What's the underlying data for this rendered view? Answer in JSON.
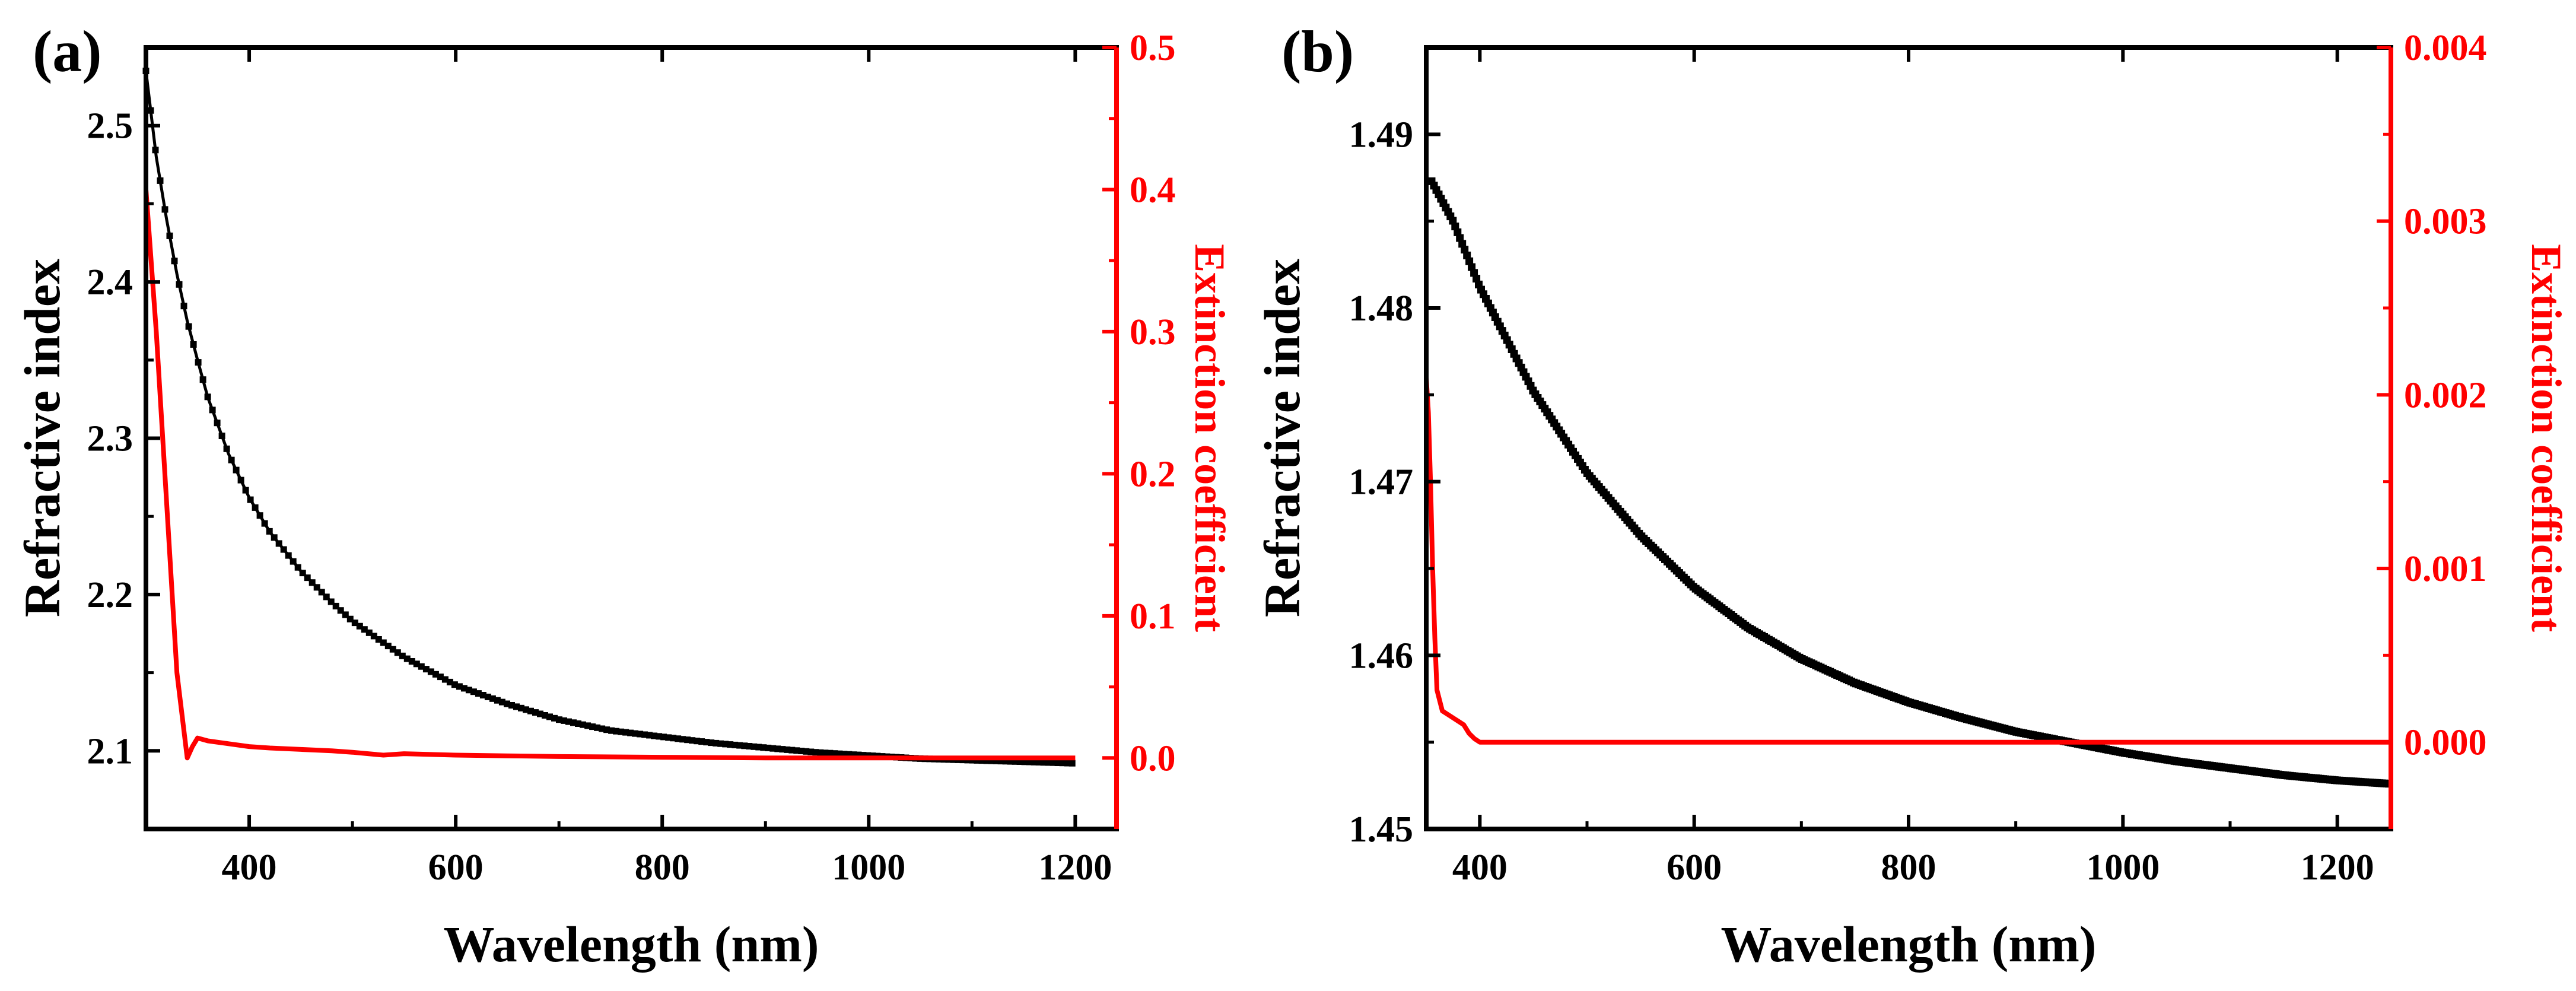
{
  "chart_data": [
    {
      "type": "line",
      "panel_label": "(a)",
      "xlabel": "Wavelength (nm)",
      "ylabel": "Refractive index",
      "y2label": "Extinction coefficient",
      "xlim": [
        300,
        1240
      ],
      "ylim": [
        2.05,
        2.55
      ],
      "y2lim": [
        -0.05,
        0.5
      ],
      "xticks": [
        400,
        600,
        800,
        1000,
        1200
      ],
      "yticks": [
        2.1,
        2.2,
        2.3,
        2.4,
        2.5
      ],
      "y2ticks": [
        0.0,
        0.1,
        0.2,
        0.3,
        0.4,
        0.5
      ],
      "xticks_label": [
        "400",
        "600",
        "800",
        "1000",
        "1200"
      ],
      "yticks_label": [
        "2.1",
        "2.2",
        "2.3",
        "2.4",
        "2.5"
      ],
      "y2ticks_label": [
        "0.0",
        "0.1",
        "0.2",
        "0.3",
        "0.4",
        "0.5"
      ],
      "series": [
        {
          "name": "Refractive index",
          "axis": "left",
          "color": "#000000",
          "marker": "square",
          "x": [
            300,
            310,
            320,
            330,
            340,
            350,
            360,
            380,
            400,
            420,
            450,
            480,
            500,
            550,
            600,
            650,
            700,
            750,
            800,
            850,
            900,
            950,
            1000,
            1050,
            1100,
            1150,
            1200
          ],
          "y": [
            2.535,
            2.48,
            2.44,
            2.405,
            2.375,
            2.35,
            2.326,
            2.29,
            2.262,
            2.24,
            2.215,
            2.195,
            2.183,
            2.16,
            2.142,
            2.13,
            2.12,
            2.113,
            2.109,
            2.105,
            2.102,
            2.099,
            2.097,
            2.095,
            2.094,
            2.093,
            2.092
          ]
        },
        {
          "name": "Extinction coefficient",
          "axis": "right",
          "color": "#ff0000",
          "marker": "none",
          "x": [
            300,
            310,
            320,
            330,
            340,
            345,
            350,
            360,
            380,
            400,
            420,
            450,
            480,
            500,
            530,
            550,
            600,
            650,
            700,
            800,
            900,
            1000,
            1100,
            1150,
            1200
          ],
          "y": [
            0.4,
            0.3,
            0.18,
            0.06,
            0.0,
            0.008,
            0.014,
            0.012,
            0.01,
            0.008,
            0.007,
            0.006,
            0.005,
            0.004,
            0.002,
            0.003,
            0.002,
            0.0015,
            0.001,
            0.0005,
            0.0,
            0.0,
            0.0,
            0.0,
            0.0
          ]
        }
      ]
    },
    {
      "type": "line",
      "panel_label": "(b)",
      "xlabel": "Wavelength (nm)",
      "ylabel": "Refractive index",
      "y2label": "Extinction coefficient",
      "xlim": [
        350,
        1250
      ],
      "ylim": [
        1.45,
        1.495
      ],
      "y2lim": [
        -0.0005,
        0.004
      ],
      "xticks": [
        400,
        600,
        800,
        1000,
        1200
      ],
      "yticks": [
        1.45,
        1.46,
        1.47,
        1.48,
        1.49
      ],
      "y2ticks": [
        0.0,
        0.001,
        0.002,
        0.003,
        0.004
      ],
      "xticks_label": [
        "400",
        "600",
        "800",
        "1000",
        "1200"
      ],
      "yticks_label": [
        "1.45",
        "1.46",
        "1.47",
        "1.48",
        "1.49"
      ],
      "y2ticks_label": [
        "0.000",
        "0.001",
        "0.002",
        "0.003",
        "0.004"
      ],
      "series": [
        {
          "name": "Refractive index",
          "axis": "left",
          "color": "#000000",
          "marker": "square-dense",
          "x": [
            355,
            375,
            400,
            450,
            500,
            550,
            600,
            650,
            700,
            750,
            800,
            850,
            900,
            950,
            1000,
            1050,
            1100,
            1150,
            1200,
            1250
          ],
          "y": [
            1.4873,
            1.485,
            1.4812,
            1.4752,
            1.4705,
            1.4669,
            1.4639,
            1.4616,
            1.4598,
            1.4584,
            1.4573,
            1.4564,
            1.4556,
            1.455,
            1.4544,
            1.4539,
            1.4535,
            1.4531,
            1.4528,
            1.4526
          ]
        },
        {
          "name": "Extinction coefficient",
          "axis": "right",
          "color": "#ff0000",
          "marker": "none",
          "x": [
            350,
            352,
            354,
            356,
            358,
            360,
            365,
            370,
            375,
            380,
            385,
            390,
            395,
            400,
            500,
            600,
            800,
            1000,
            1200,
            1250
          ],
          "y": [
            0.0021,
            0.0019,
            0.0015,
            0.001,
            0.0006,
            0.0003,
            0.00018,
            0.00016,
            0.00014,
            0.00012,
            0.0001,
            5e-05,
            2e-05,
            0.0,
            0.0,
            0.0,
            0.0,
            0.0,
            0.0,
            0.0
          ]
        }
      ]
    }
  ]
}
